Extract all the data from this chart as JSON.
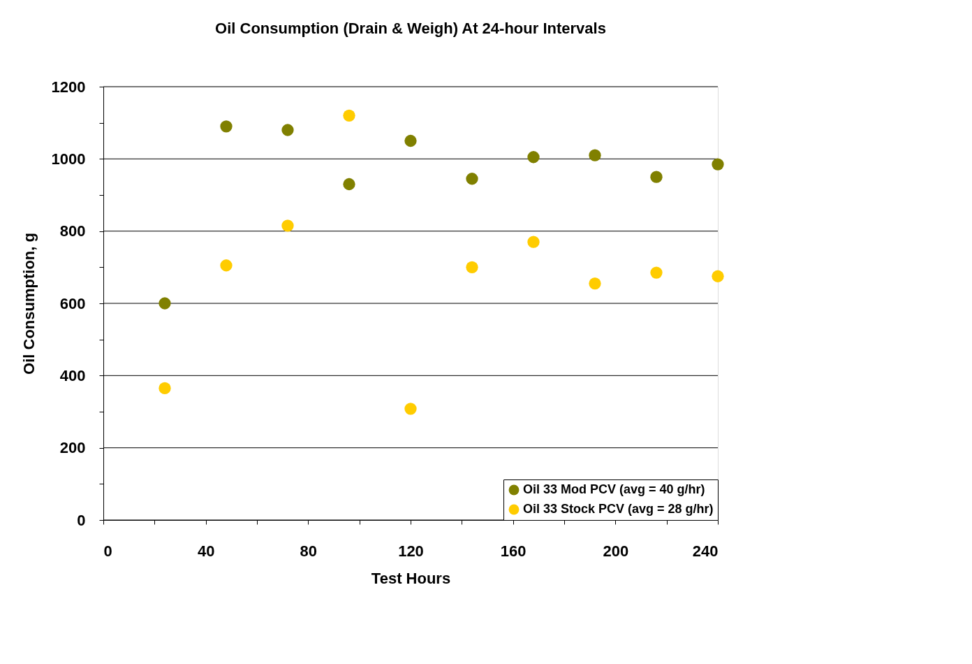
{
  "chart_data": {
    "type": "scatter",
    "title": "Oil Consumption (Drain & Weigh) At 24-hour Intervals",
    "xlabel": "Test Hours",
    "ylabel": "Oil Consumption, g",
    "x": [
      24,
      48,
      72,
      96,
      120,
      144,
      168,
      192,
      216,
      240
    ],
    "series": [
      {
        "name": "Oil 33 Mod PCV (avg = 40 g/hr)",
        "color": "#808000",
        "values": [
          600,
          1090,
          1080,
          930,
          1050,
          945,
          1005,
          1010,
          950,
          985
        ]
      },
      {
        "name": "Oil 33 Stock PCV (avg = 28 g/hr)",
        "color": "#ffcc00",
        "values": [
          365,
          705,
          815,
          1120,
          308,
          700,
          770,
          655,
          685,
          675
        ]
      }
    ],
    "xlim": [
      0,
      240
    ],
    "ylim": [
      0,
      1200
    ],
    "xticks": [
      0,
      {
        "value": 20,
        "label": null
      },
      40,
      {
        "value": 60,
        "label": null
      },
      80,
      {
        "value": 100,
        "label": null
      },
      120,
      {
        "value": 140,
        "label": null
      },
      160,
      {
        "value": 180,
        "label": null
      },
      200,
      {
        "value": 220,
        "label": null
      },
      240
    ],
    "yticks": [
      0,
      {
        "value": 100,
        "label": null
      },
      200,
      {
        "value": 300,
        "label": null
      },
      400,
      {
        "value": 500,
        "label": null
      },
      600,
      {
        "value": 700,
        "label": null
      },
      800,
      {
        "value": 900,
        "label": null
      },
      1000,
      {
        "value": 1100,
        "label": null
      },
      1200
    ],
    "grid": "y",
    "legend": "bottom right",
    "marker": "circle"
  }
}
